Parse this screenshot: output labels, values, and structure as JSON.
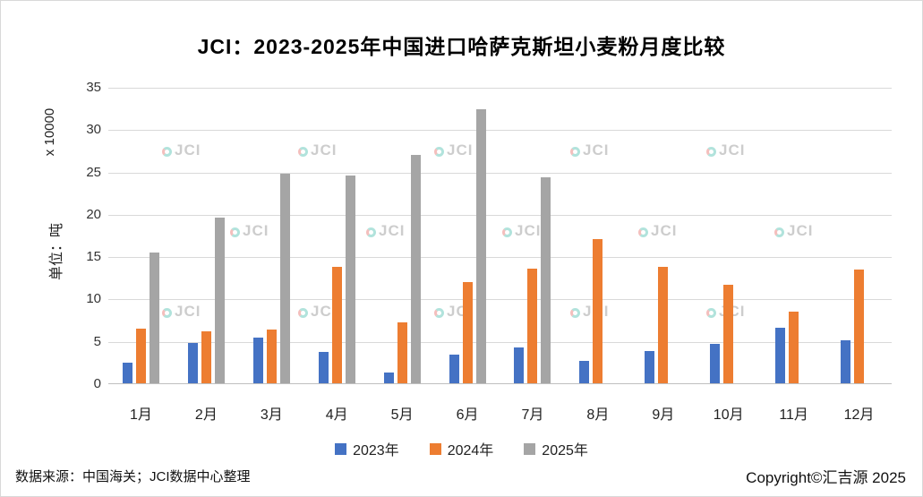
{
  "title": "JCI：2023-2025年中国进口哈萨克斯坦小麦粉月度比较",
  "y_axis": {
    "unit_multiplier": "x 10000",
    "unit_label": "单位：吨",
    "ticks": [
      0,
      5,
      10,
      15,
      20,
      25,
      30,
      35
    ]
  },
  "watermark": {
    "text": "JCI"
  },
  "legend": {
    "position": "bottom"
  },
  "footer": {
    "source": "数据来源：中国海关；JCI数据中心整理",
    "copyright": "Copyright©汇吉源 2025"
  },
  "chart_data": {
    "type": "bar",
    "title": "JCI：2023-2025年中国进口哈萨克斯坦小麦粉月度比较",
    "xlabel": "",
    "ylabel": "单位：吨 (x 10000)",
    "ylim": [
      0,
      35
    ],
    "grid": true,
    "legend_position": "bottom",
    "categories": [
      "1月",
      "2月",
      "3月",
      "4月",
      "5月",
      "6月",
      "7月",
      "8月",
      "9月",
      "10月",
      "11月",
      "12月"
    ],
    "series": [
      {
        "name": "2023年",
        "color": "#4472C4",
        "values": [
          2.4,
          4.8,
          5.4,
          3.7,
          1.3,
          3.4,
          4.2,
          2.6,
          3.8,
          4.7,
          6.6,
          5.1
        ]
      },
      {
        "name": "2024年",
        "color": "#ED7D31",
        "values": [
          6.4,
          6.1,
          6.3,
          13.7,
          7.2,
          12.0,
          13.5,
          17.0,
          13.7,
          11.6,
          8.5,
          13.4
        ]
      },
      {
        "name": "2025年",
        "color": "#A5A5A5",
        "values": [
          15.4,
          19.6,
          24.7,
          24.5,
          27.0,
          32.4,
          24.3,
          null,
          null,
          null,
          null,
          null
        ]
      }
    ]
  }
}
